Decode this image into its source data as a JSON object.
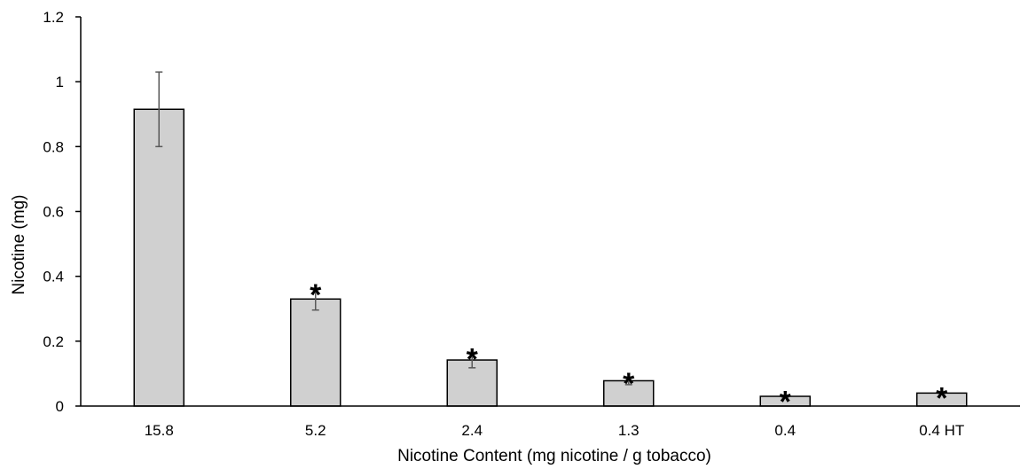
{
  "chart_data": {
    "type": "bar",
    "title": "",
    "xlabel": "Nicotine Content (mg nicotine / g tobacco)",
    "ylabel": "Nicotine (mg)",
    "ylim": [
      0,
      1.2
    ],
    "yticks": [
      "0",
      "0.2",
      "0.4",
      "0.6",
      "0.8",
      "1",
      "1.2"
    ],
    "categories": [
      "15.8",
      "5.2",
      "2.4",
      "1.3",
      "0.4",
      "0.4 HT"
    ],
    "values": [
      0.915,
      0.33,
      0.142,
      0.078,
      0.03,
      0.04
    ],
    "error": [
      0.115,
      0.034,
      0.024,
      0.012,
      0.004,
      0.005
    ],
    "significance": [
      "",
      "*",
      "*",
      "*",
      "*",
      "*"
    ],
    "grid": false,
    "bar_color": "#d0d0d0",
    "bar_edge_color": "#000000",
    "error_bar_color": "#595959"
  }
}
